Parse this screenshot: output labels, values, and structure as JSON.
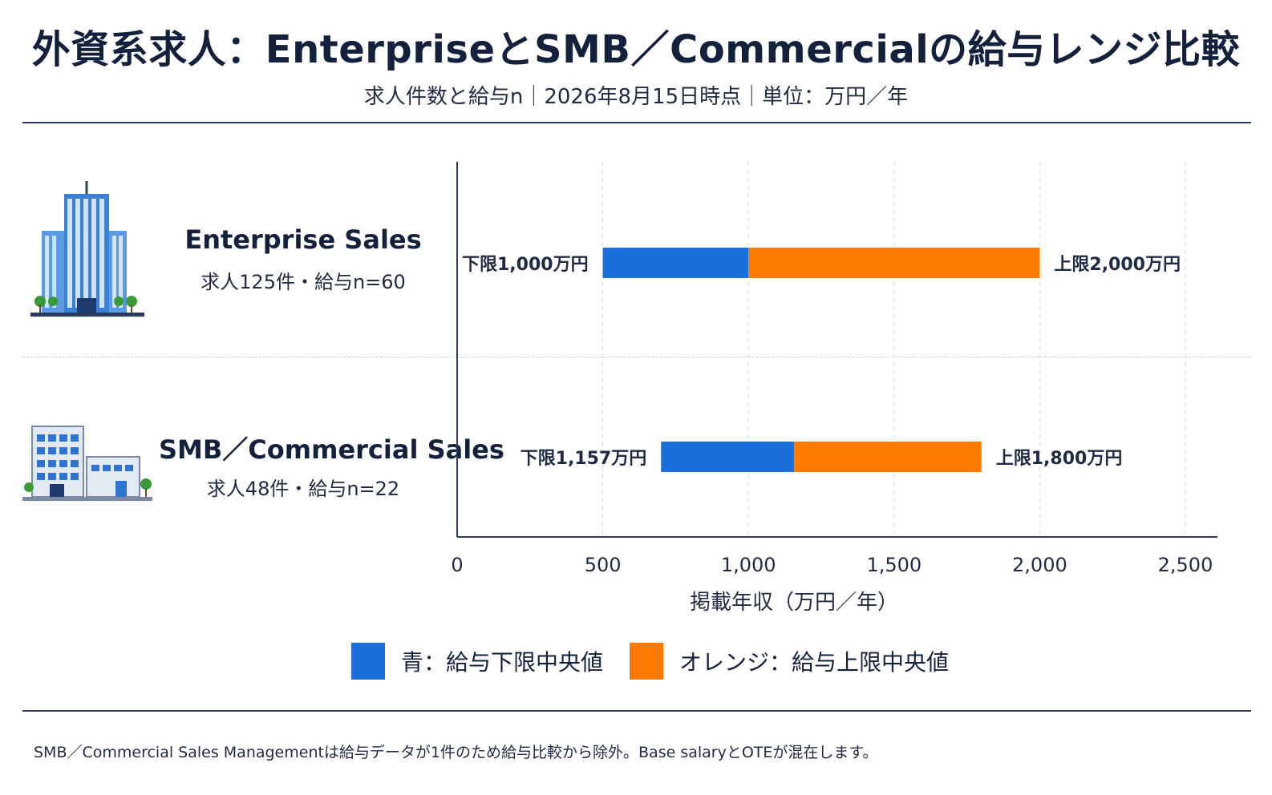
{
  "header": {
    "title": "外資系求人：EnterpriseとSMB／Commercialの給与レンジ比較",
    "subtitle": "求人件数と給与n｜2026年8月15日時点｜単位：万円／年"
  },
  "categories_info": [
    {
      "name": "Enterprise Sales",
      "meta": "求人125件・給与n=60",
      "icon": "office-tower-icon"
    },
    {
      "name": "SMB／Commercial Sales",
      "meta": "求人48件・給与n=22",
      "icon": "office-building-icon"
    }
  ],
  "chart_data": {
    "type": "bar",
    "orientation": "horizontal",
    "xlabel": "掲載年収（万円／年）",
    "xlim": [
      0,
      2500
    ],
    "xticks": [
      0,
      500,
      1000,
      1500,
      2000,
      2500
    ],
    "xtick_labels": [
      "0",
      "500",
      "1,000",
      "1,500",
      "2,000",
      "2,500"
    ],
    "grid": "vertical dashed",
    "categories": [
      "Enterprise Sales",
      "SMB／Commercial Sales"
    ],
    "series": [
      {
        "name": "青：給与下限中央値",
        "color": "#1a6fd8",
        "values": [
          1000,
          1157
        ],
        "starts": [
          500,
          700
        ]
      },
      {
        "name": "オレンジ：給与上限中央値",
        "color": "#ff7a00",
        "values": [
          2000,
          1800
        ],
        "starts": [
          1000,
          1157
        ]
      }
    ],
    "data_labels": [
      {
        "low": "下限1,000万円",
        "high": "上限2,000万円"
      },
      {
        "low": "下限1,157万円",
        "high": "上限1,800万円"
      }
    ]
  },
  "legend": {
    "items": [
      {
        "label": "青：給与下限中央値",
        "color": "#1a6fd8"
      },
      {
        "label": "オレンジ：給与上限中央値",
        "color": "#ff7a00"
      }
    ],
    "placement": "bottom"
  },
  "footnote": "SMB／Commercial Sales Managementは給与データが1件のため給与比較から除外。Base salaryとOTEが混在します。"
}
